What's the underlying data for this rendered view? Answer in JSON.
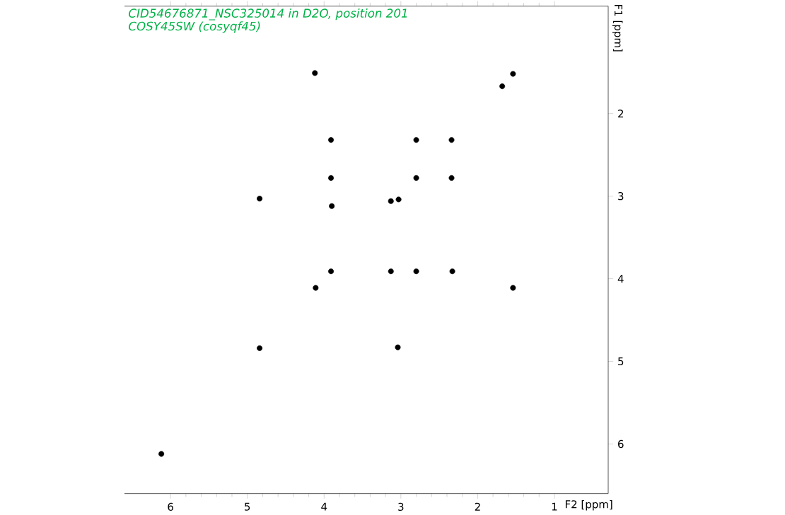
{
  "chart_data": {
    "type": "scatter",
    "title": "CID54676871_NSC325014 in D2O, position 201",
    "subtitle": "COSY45SW (cosyqf45)",
    "xlabel": "F2 [ppm]",
    "ylabel": "F1 [ppm]",
    "xlim": [
      6.6,
      0.3
    ],
    "ylim": [
      6.6,
      0.7
    ],
    "xticks": [
      6,
      5,
      4,
      3,
      2,
      1
    ],
    "yticks": [
      2,
      3,
      4,
      5,
      6
    ],
    "grid": false,
    "series": [
      {
        "color": "#000000",
        "x": [
          4.12,
          1.68,
          1.54,
          3.91,
          2.8,
          2.34,
          3.91,
          2.8,
          2.34,
          4.84,
          3.9,
          3.13,
          3.03,
          3.91,
          3.13,
          2.8,
          2.33,
          4.11,
          1.54,
          4.84,
          3.04,
          6.12
        ],
        "values": [
          1.51,
          1.67,
          1.52,
          2.32,
          2.32,
          2.32,
          2.78,
          2.78,
          2.78,
          3.03,
          3.12,
          3.06,
          3.04,
          3.91,
          3.91,
          3.91,
          3.91,
          4.11,
          4.11,
          4.84,
          4.83,
          6.12
        ]
      }
    ]
  }
}
